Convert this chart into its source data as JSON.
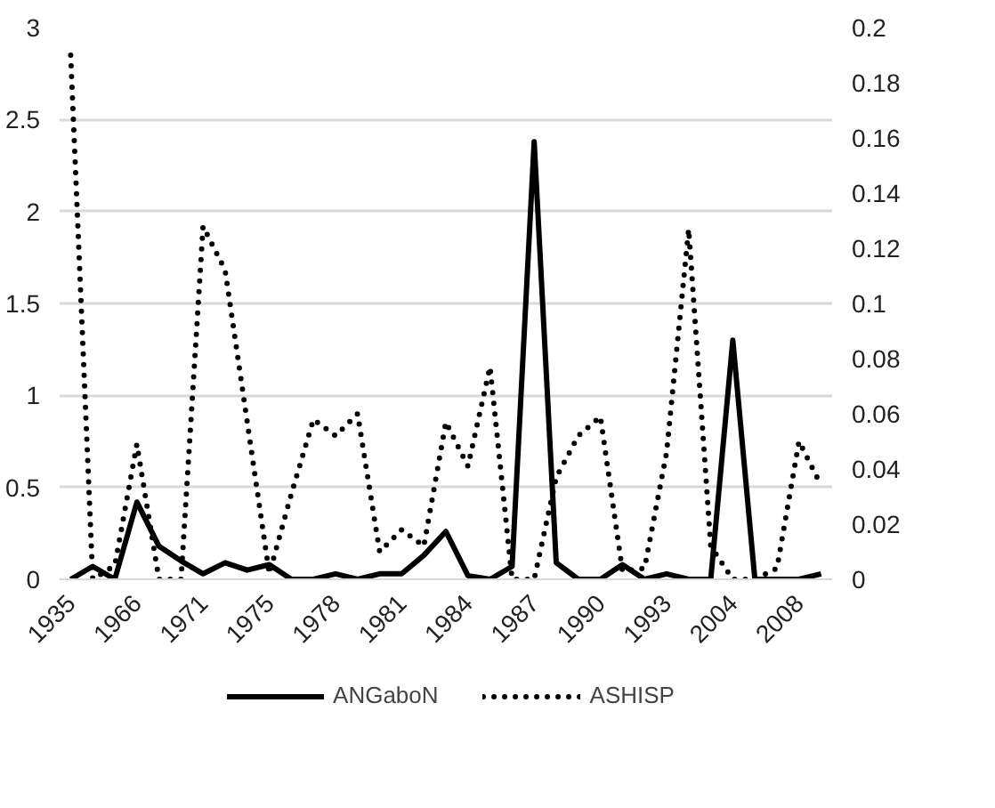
{
  "chart_data": {
    "type": "line",
    "categories": [
      "1935",
      null,
      null,
      "1966",
      null,
      null,
      "1971",
      null,
      null,
      "1975",
      null,
      null,
      "1978",
      null,
      null,
      "1981",
      null,
      null,
      "1984",
      null,
      null,
      "1987",
      null,
      null,
      "1990",
      null,
      null,
      "1993",
      null,
      null,
      "2004",
      null,
      null,
      "2008",
      null
    ],
    "series": [
      {
        "name": "ANGaboN",
        "color": "#000000",
        "line_style": "solid",
        "values": [
          0,
          0.07,
          0,
          0.42,
          0.18,
          0.1,
          0.03,
          0.09,
          0.05,
          0.08,
          0,
          0,
          0.03,
          0,
          0.03,
          0.03,
          0.13,
          0.26,
          0.02,
          0,
          0.07,
          2.38,
          0.09,
          0,
          0,
          0.08,
          0,
          0.03,
          0,
          0,
          1.3,
          0,
          0,
          0,
          0.03
        ]
      },
      {
        "name": "ASHISP",
        "color": "#000000",
        "line_style": "dotted",
        "axis": "y2",
        "values": [
          0.19,
          0,
          0.005,
          0.049,
          0,
          0,
          0.128,
          0.112,
          0.057,
          0.002,
          0.031,
          0.058,
          0.052,
          0.06,
          0.01,
          0.018,
          0.012,
          0.057,
          0.041,
          0.077,
          0,
          0,
          0.037,
          0.052,
          0.059,
          0.003,
          0.004,
          0.046,
          0.127,
          0.012,
          0,
          0,
          0.004,
          0.05,
          0.034
        ]
      }
    ],
    "ylim": [
      0,
      3
    ],
    "yticks": [
      0,
      0.5,
      1,
      1.5,
      2,
      2.5,
      3
    ],
    "y2lim": [
      0,
      0.2
    ],
    "y2ticks": [
      0,
      0.02,
      0.04,
      0.06,
      0.08,
      0.1,
      0.12,
      0.14,
      0.16,
      0.18,
      0.2
    ],
    "grid": "y",
    "legend": "bottom",
    "marker": "none"
  }
}
